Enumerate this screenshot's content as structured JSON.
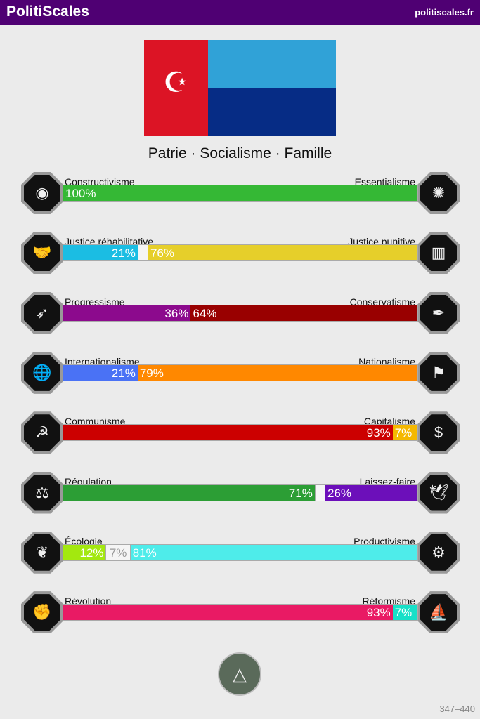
{
  "header": {
    "title": "PolitiScales",
    "url": "politiscales.fr"
  },
  "slogan": "Patrie · Socialisme · Famille",
  "axes": [
    {
      "left": "Constructivisme",
      "right": "Essentialisme",
      "l": 100,
      "r": 0,
      "lc": "#35b835",
      "rc": "#35b835",
      "li": "◉",
      "ri": "✺"
    },
    {
      "left": "Justice réhabilitative",
      "right": "Justice punitive",
      "l": 21,
      "r": 76,
      "lc": "#1bbde3",
      "rc": "#e6cf2a",
      "li": "🤝",
      "ri": "▥"
    },
    {
      "left": "Progressisme",
      "right": "Conservatisme",
      "l": 36,
      "r": 64,
      "lc": "#8c0a8d",
      "rc": "#990000",
      "li": "➶",
      "ri": "✒"
    },
    {
      "left": "Internationalisme",
      "right": "Nationalisme",
      "l": 21,
      "r": 79,
      "lc": "#4a72f5",
      "rc": "#ff8800",
      "li": "🌐",
      "ri": "⚑"
    },
    {
      "left": "Communisme",
      "right": "Capitalisme",
      "l": 93,
      "r": 7,
      "lc": "#cc0000",
      "rc": "#f5b800",
      "li": "☭",
      "ri": "$"
    },
    {
      "left": "Régulation",
      "right": "Laissez-faire",
      "l": 71,
      "r": 26,
      "lc": "#2c9e35",
      "rc": "#6c0fba",
      "li": "⚖",
      "ri": "🕊"
    },
    {
      "left": "Écologie",
      "right": "Productivisme",
      "l": 12,
      "r": 81,
      "lc": "#a3e80f",
      "rc": "#4eecea",
      "li": "❦",
      "ri": "⚙"
    },
    {
      "left": "Révolution",
      "right": "Réformisme",
      "l": 93,
      "r": 7,
      "lc": "#e91a64",
      "rc": "#17e0c8",
      "li": "✊",
      "ri": "⛵"
    }
  ],
  "footer": "347–440"
}
